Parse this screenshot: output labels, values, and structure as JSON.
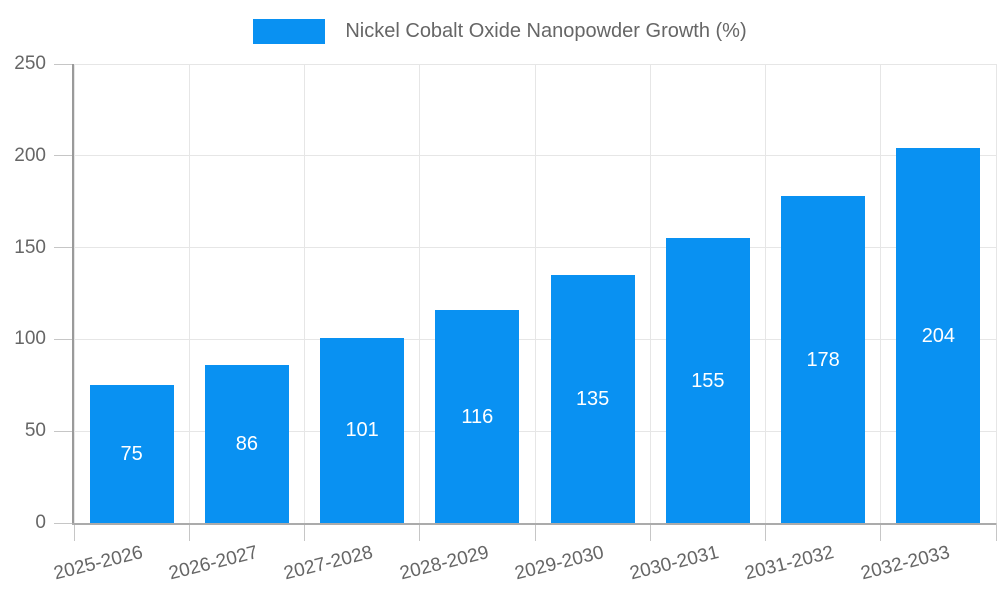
{
  "chart_data": {
    "type": "bar",
    "title": "Nickel Cobalt Oxide Nanopowder Growth (%)",
    "legend": {
      "position": "top",
      "label": "Nickel Cobalt Oxide Nanopowder Growth (%)"
    },
    "categories": [
      "2025-2026",
      "2026-2027",
      "2027-2028",
      "2028-2029",
      "2029-2030",
      "2030-2031",
      "2031-2032",
      "2032-2033"
    ],
    "values": [
      75,
      86,
      101,
      116,
      135,
      155,
      178,
      204
    ],
    "value_labels_visible": true,
    "xlabel": "",
    "ylabel": "",
    "ylim": [
      0,
      250
    ],
    "yticks": [
      0,
      50,
      100,
      150,
      200,
      250
    ],
    "grid": true,
    "colors": {
      "bar": "#0991f2",
      "value_label": "#ffffff",
      "axis_text": "#666666",
      "gridline": "#e6e6e6"
    }
  }
}
